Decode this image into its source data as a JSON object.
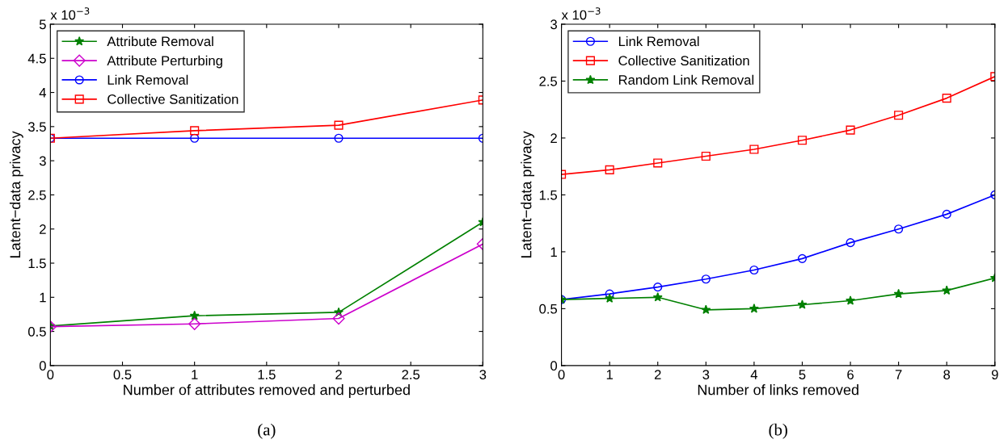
{
  "chart_data": [
    {
      "type": "line",
      "xlabel": "Number of attributes removed and perturbed",
      "ylabel": "Latent−data privacy",
      "x": [
        0,
        1,
        2,
        3
      ],
      "xlim": [
        0,
        3
      ],
      "xticks": [
        0,
        0.5,
        1,
        1.5,
        2,
        2.5,
        3
      ],
      "ylim": [
        0,
        5
      ],
      "yticks": [
        0,
        0.5,
        1,
        1.5,
        2,
        2.5,
        3,
        3.5,
        4,
        4.5,
        5
      ],
      "grid": false,
      "legend": "top left",
      "annotations": [
        "x 10$^{−3}$",
        "(a)"
      ],
      "series": [
        {
          "name": "Attribute Removal",
          "color": "#008000",
          "marker": "star",
          "values": [
            0.58,
            0.73,
            0.78,
            2.1
          ]
        },
        {
          "name": "Attribute Perturbing",
          "color": "#cc00cc",
          "marker": "diamond",
          "values": [
            0.57,
            0.61,
            0.69,
            1.78
          ]
        },
        {
          "name": "Link Removal",
          "color": "#0000ff",
          "marker": "circle",
          "values": [
            3.33,
            3.33,
            3.33,
            3.33
          ]
        },
        {
          "name": "Collective Sanitization",
          "color": "#ff0000",
          "marker": "square",
          "values": [
            3.33,
            3.44,
            3.52,
            3.89
          ]
        }
      ]
    },
    {
      "type": "line",
      "xlabel": "Number of links removed",
      "ylabel": "Latent−data privacy",
      "x": [
        0,
        1,
        2,
        3,
        4,
        5,
        6,
        7,
        8,
        9
      ],
      "xlim": [
        0,
        9
      ],
      "xticks": [
        0,
        1,
        2,
        3,
        4,
        5,
        6,
        7,
        8,
        9
      ],
      "ylim": [
        0,
        3
      ],
      "yticks": [
        0,
        0.5,
        1,
        1.5,
        2,
        2.5,
        3
      ],
      "grid": false,
      "legend": "top left",
      "annotations": [
        "x 10$^{−3}$",
        "(b)"
      ],
      "series": [
        {
          "name": "Link Removal",
          "color": "#0000ff",
          "marker": "circle",
          "values": [
            0.58,
            0.63,
            0.69,
            0.76,
            0.84,
            0.94,
            1.08,
            1.2,
            1.33,
            1.5
          ]
        },
        {
          "name": "Collective Sanitization",
          "color": "#ff0000",
          "marker": "square",
          "values": [
            1.68,
            1.72,
            1.78,
            1.84,
            1.9,
            1.98,
            2.07,
            2.2,
            2.35,
            2.54
          ]
        },
        {
          "name": "Random Link Removal",
          "color": "#008000",
          "marker": "star",
          "values": [
            0.58,
            0.59,
            0.6,
            0.49,
            0.5,
            0.535,
            0.57,
            0.63,
            0.66,
            0.77
          ]
        }
      ]
    }
  ]
}
